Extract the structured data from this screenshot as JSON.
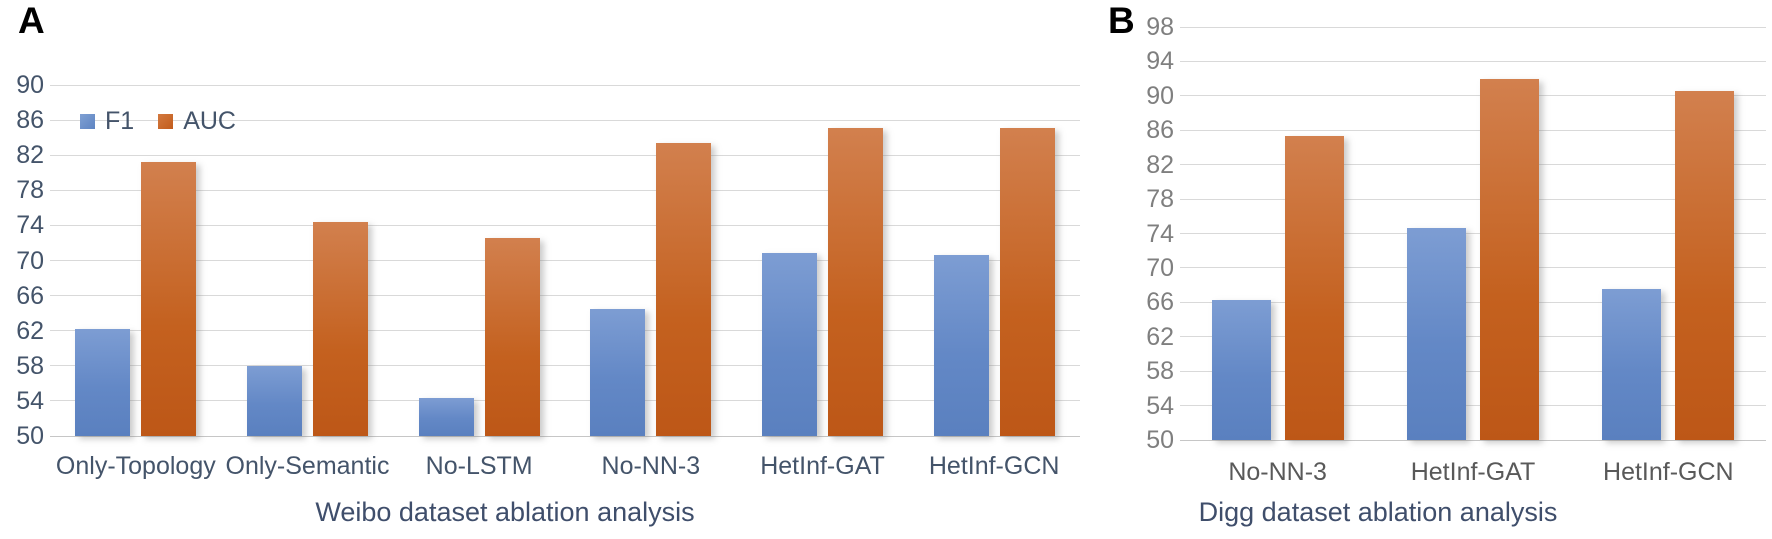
{
  "legend": {
    "items": [
      {
        "label": "F1"
      },
      {
        "label": "AUC"
      }
    ]
  },
  "colors": {
    "f1_bar": "#6388C6",
    "auc_bar": "#C4611F",
    "gridline": "#D9D9D9",
    "weibo_tick_text": "#44546A",
    "digg_tick_text": "#7F7F7F",
    "weibo_category_text": "#44546A",
    "digg_category_text": "#595959",
    "title_text": "#3F4E6B"
  },
  "chart_data": [
    {
      "id": "weibo",
      "type": "bar",
      "panel_label": "A",
      "title": "Weibo dataset ablation analysis",
      "categories": [
        "Only-Topology",
        "Only-Semantic",
        "No-LSTM",
        "No-NN-3",
        "HetInf-GAT",
        "HetInf-GCN"
      ],
      "series": [
        {
          "name": "F1",
          "values": [
            62.2,
            58.0,
            54.3,
            64.5,
            70.9,
            70.6
          ]
        },
        {
          "name": "AUC",
          "values": [
            81.2,
            74.4,
            72.6,
            83.4,
            85.1,
            85.1
          ]
        }
      ],
      "ylim": [
        50,
        90
      ],
      "ytick_step": 4,
      "yticks": [
        90,
        86,
        82,
        78,
        74,
        70,
        66,
        62,
        58,
        54,
        50
      ],
      "grid": true,
      "legend_position": "top-left-inside"
    },
    {
      "id": "digg",
      "type": "bar",
      "panel_label": "B",
      "title": "Digg dataset ablation analysis",
      "categories": [
        "No-NN-3",
        "HetInf-GAT",
        "HetInf-GCN"
      ],
      "series": [
        {
          "name": "F1",
          "values": [
            66.3,
            74.6,
            67.6
          ]
        },
        {
          "name": "AUC",
          "values": [
            85.3,
            92.0,
            90.6
          ]
        }
      ],
      "ylim": [
        50,
        98
      ],
      "ytick_step": 4,
      "yticks": [
        98,
        94,
        90,
        86,
        82,
        78,
        74,
        70,
        66,
        62,
        58,
        54,
        50
      ],
      "grid": true,
      "legend_position": "none"
    }
  ]
}
